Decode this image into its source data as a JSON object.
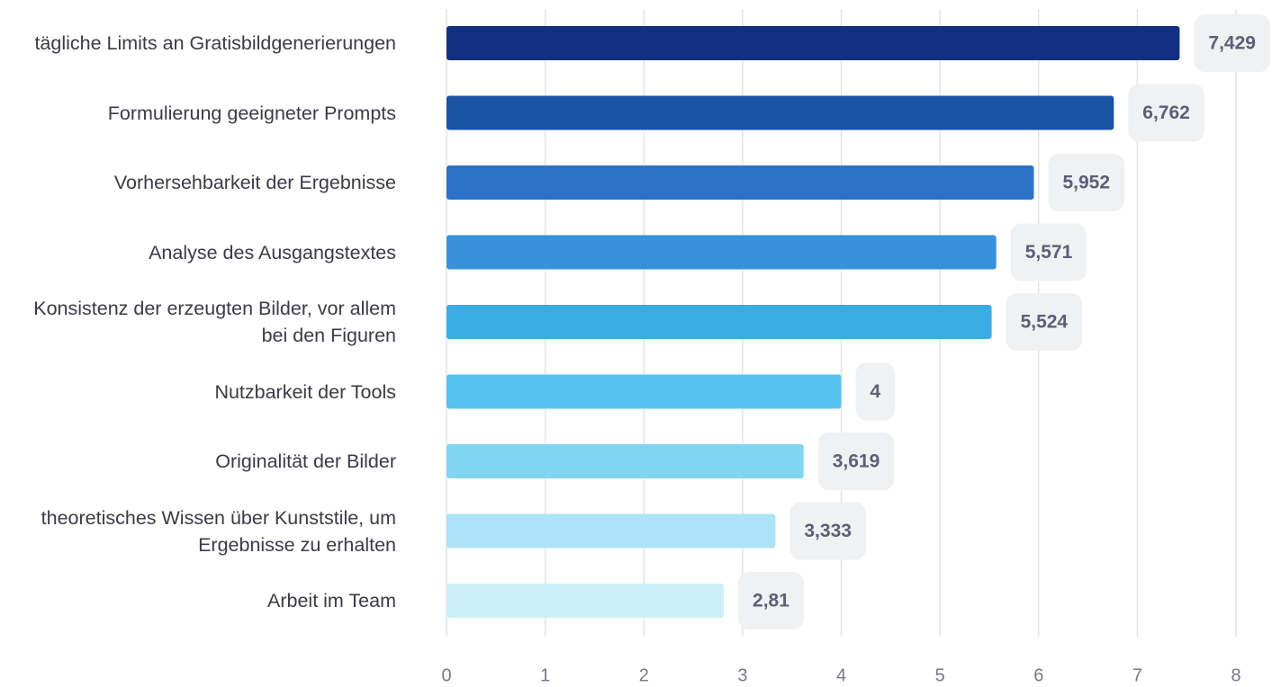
{
  "chart_data": {
    "type": "bar",
    "orientation": "horizontal",
    "categories": [
      "tägliche Limits an Gratisbildgenerierungen",
      "Formulierung geeigneter Prompts",
      "Vorhersehbarkeit der Ergebnisse",
      "Analyse des Ausgangstextes",
      "Konsistenz der erzeugten Bilder, vor allem bei den Figuren",
      "Nutzbarkeit der Tools",
      "Originalität der Bilder",
      "theoretisches Wissen über Kunststile, um Ergebnisse zu erhalten",
      "Arbeit im Team"
    ],
    "values": [
      7.429,
      6.762,
      5.952,
      5.571,
      5.524,
      4,
      3.619,
      3.333,
      2.81
    ],
    "value_labels": [
      "7,429",
      "6,762",
      "5,952",
      "5,571",
      "5,524",
      "4",
      "3,619",
      "3,333",
      "2,81"
    ],
    "colors": [
      "#132f7f",
      "#1a52a6",
      "#2b72c6",
      "#3891da",
      "#3aace4",
      "#56c3ef",
      "#80d6f2",
      "#ade3f6",
      "#cdeff9"
    ],
    "xlim": [
      0,
      8
    ],
    "xticks": [
      0,
      1,
      2,
      3,
      4,
      5,
      6,
      7,
      8
    ],
    "grid": true
  }
}
